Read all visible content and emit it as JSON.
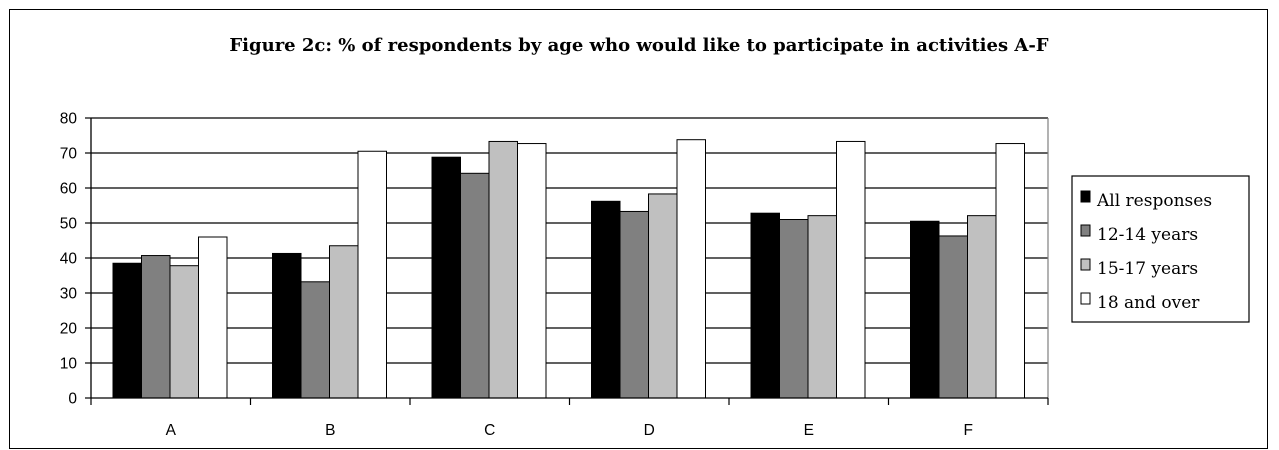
{
  "chart_data": {
    "type": "bar",
    "title": "Figure 2c: % of respondents by age who would like to participate in activities A-F",
    "xlabel": "",
    "ylabel": "",
    "categories": [
      "A",
      "B",
      "C",
      "D",
      "E",
      "F"
    ],
    "ylim": [
      0,
      80
    ],
    "yticks": [
      0,
      10,
      20,
      30,
      40,
      50,
      60,
      70,
      80
    ],
    "grid": true,
    "legend_position": "right",
    "series": [
      {
        "name": "All responses",
        "color": "#000000",
        "values": [
          38.5,
          41.3,
          68.8,
          56.2,
          52.8,
          50.5
        ]
      },
      {
        "name": "12-14 years",
        "color": "#808080",
        "values": [
          40.7,
          33.2,
          64.2,
          53.3,
          51.0,
          46.3
        ]
      },
      {
        "name": "15-17 years",
        "color": "#c0c0c0",
        "values": [
          37.8,
          43.5,
          73.3,
          58.3,
          52.1,
          52.1
        ]
      },
      {
        "name": "18 and over",
        "color": "#ffffff",
        "values": [
          46.0,
          70.5,
          72.7,
          73.8,
          73.3,
          72.7
        ]
      }
    ]
  }
}
